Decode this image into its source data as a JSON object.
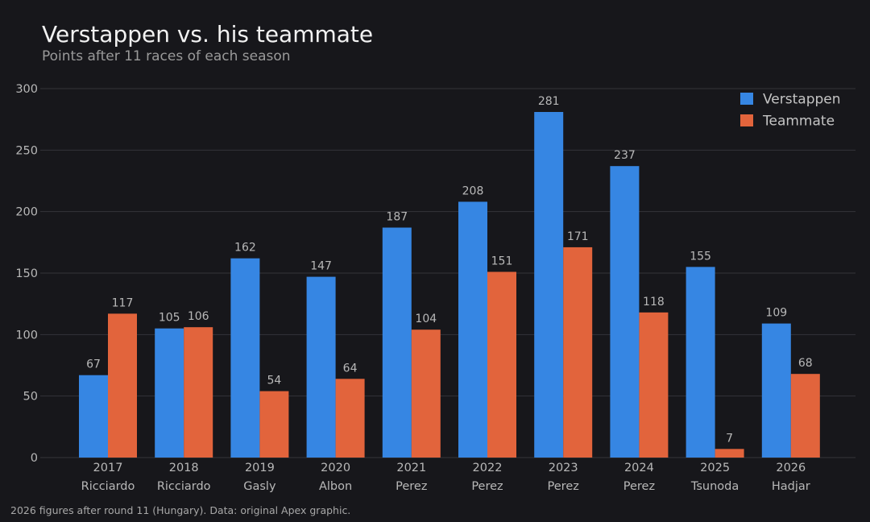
{
  "title": "Verstappen vs. his teammate",
  "subtitle": "Points after 11 races of each season",
  "footnote": "2026 figures after round 11 (Hungary). Data: original Apex graphic.",
  "colors": {
    "background": "#17171b",
    "verstappen": "#3686e3",
    "teammate": "#e2643c",
    "grid": "#34343a",
    "axis_text": "#b8b8b8"
  },
  "chart_data": {
    "type": "bar",
    "categories": [
      "2017",
      "2018",
      "2019",
      "2020",
      "2021",
      "2022",
      "2023",
      "2024",
      "2025",
      "2026"
    ],
    "teammate_names": [
      "Ricciardo",
      "Ricciardo",
      "Gasly",
      "Albon",
      "Perez",
      "Perez",
      "Perez",
      "Perez",
      "Tsunoda",
      "Hadjar"
    ],
    "series": [
      {
        "name": "Verstappen",
        "values": [
          67,
          105,
          162,
          147,
          187,
          208,
          281,
          237,
          155,
          109
        ]
      },
      {
        "name": "Teammate",
        "values": [
          117,
          106,
          54,
          64,
          104,
          151,
          171,
          118,
          7,
          68
        ]
      }
    ],
    "y_ticks": [
      0,
      50,
      100,
      150,
      200,
      250,
      300
    ],
    "ylim": [
      0,
      300
    ],
    "grid": true,
    "legend_position": "top-right",
    "data_labels": true
  }
}
